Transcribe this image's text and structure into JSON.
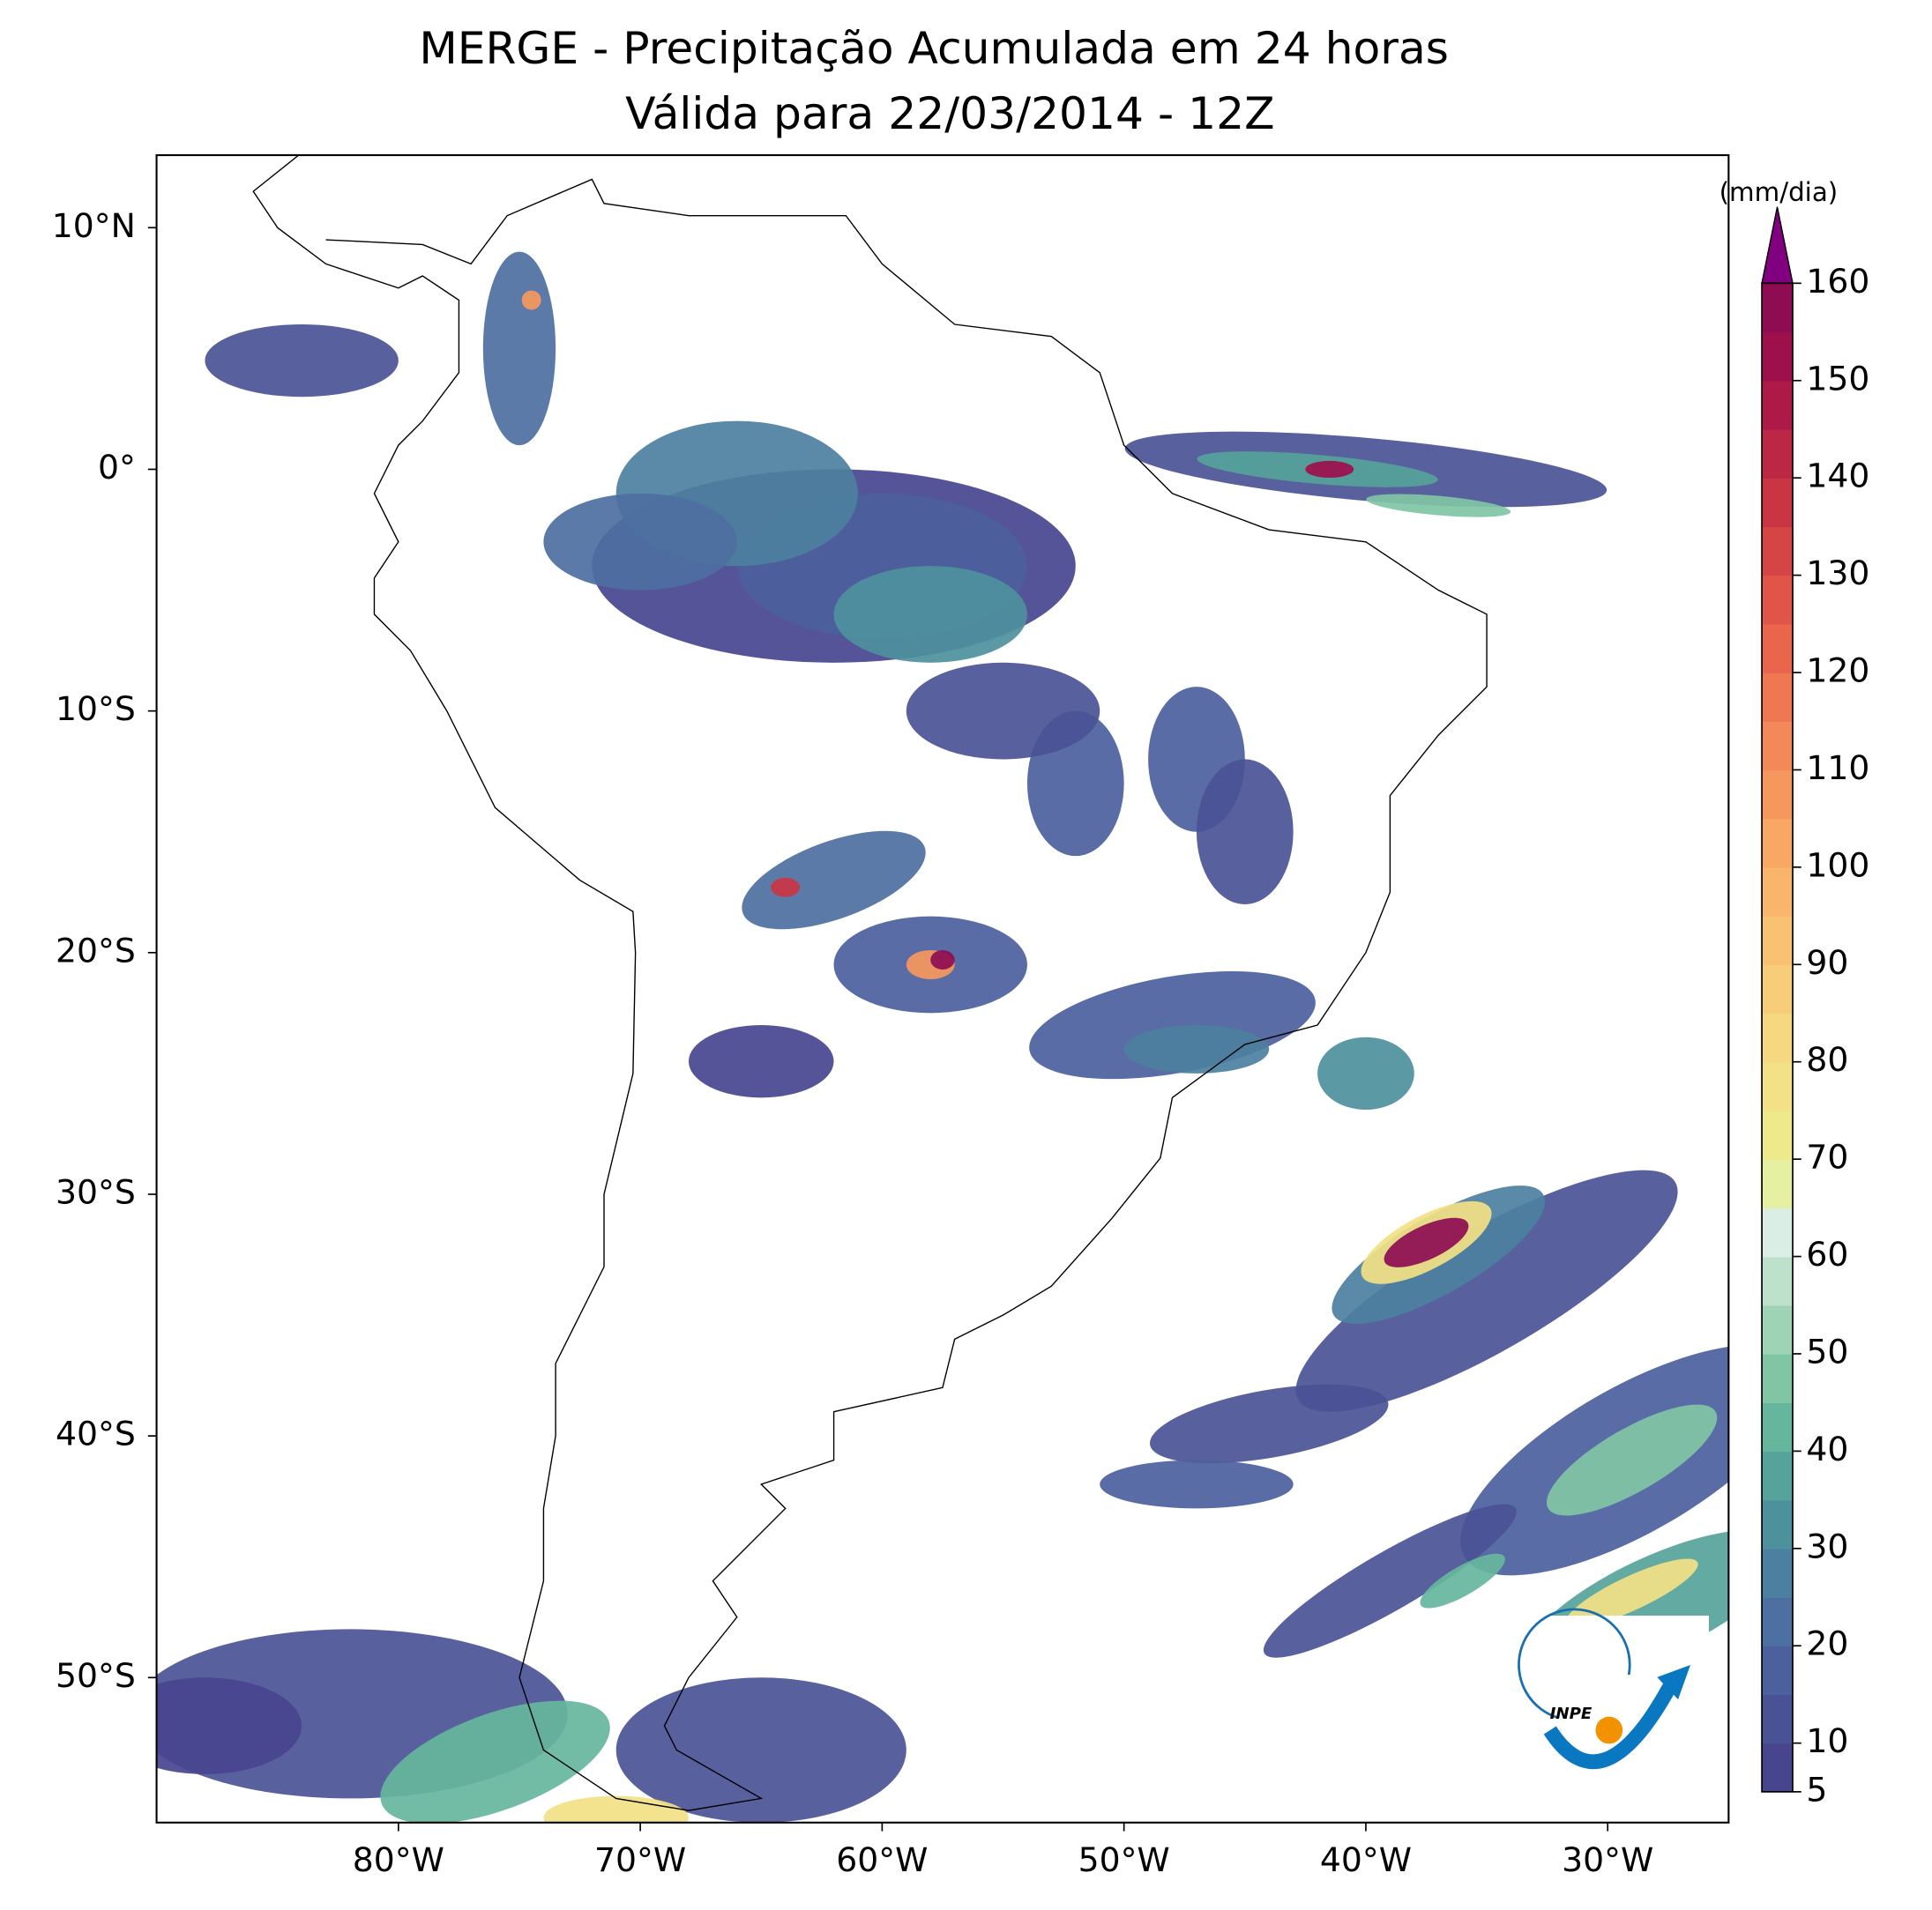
{
  "chart_data": {
    "type": "map",
    "title": "MERGE - Precipitação Acumulada em 24 horas",
    "subtitle": "Válida para 22/03/2014 - 12Z",
    "xlim": [
      -90,
      -25
    ],
    "ylim": [
      -56,
      13
    ],
    "xticks": [
      {
        "value": -80,
        "label": "80°W"
      },
      {
        "value": -70,
        "label": "70°W"
      },
      {
        "value": -60,
        "label": "60°W"
      },
      {
        "value": -50,
        "label": "50°W"
      },
      {
        "value": -40,
        "label": "40°W"
      },
      {
        "value": -30,
        "label": "30°W"
      }
    ],
    "yticks": [
      {
        "value": 10,
        "label": "10°N"
      },
      {
        "value": 0,
        "label": "0°"
      },
      {
        "value": -10,
        "label": "10°S"
      },
      {
        "value": -20,
        "label": "20°S"
      },
      {
        "value": -30,
        "label": "30°S"
      },
      {
        "value": -40,
        "label": "40°S"
      },
      {
        "value": -50,
        "label": "50°S"
      }
    ],
    "colorbar": {
      "label": "(mm/dia)",
      "lim": [
        5,
        160
      ],
      "ticks": [
        5,
        10,
        20,
        30,
        40,
        50,
        60,
        70,
        80,
        90,
        100,
        110,
        120,
        130,
        140,
        150,
        160
      ],
      "levels": [
        5,
        10,
        15,
        20,
        25,
        30,
        35,
        40,
        45,
        50,
        55,
        60,
        65,
        70,
        75,
        80,
        85,
        90,
        95,
        100,
        105,
        110,
        115,
        120,
        125,
        130,
        135,
        140,
        145,
        150,
        155,
        160
      ],
      "colors": [
        "#48458f",
        "#4a5296",
        "#4c609d",
        "#4d6fa1",
        "#4c80a0",
        "#4d919d",
        "#55a39a",
        "#66b69d",
        "#80c6a5",
        "#9ed4b5",
        "#bde1cb",
        "#dbeee5",
        "#e6f0a2",
        "#eeea8c",
        "#f2e186",
        "#f5d880",
        "#f7cd7a",
        "#f8c272",
        "#f9b56b",
        "#f8a764",
        "#f6985e",
        "#f38858",
        "#ef7752",
        "#e9664d",
        "#e05548",
        "#d64545",
        "#ca3544",
        "#bc2746",
        "#ad1a48",
        "#9d104c",
        "#8d0c52"
      ],
      "extend_color": "#800080"
    },
    "logo_text": "INPE"
  }
}
